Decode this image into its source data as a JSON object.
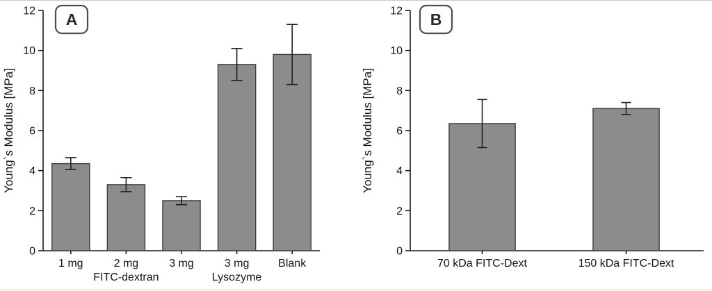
{
  "figure": {
    "background": "#ffffff"
  },
  "chart_data": [
    {
      "type": "bar",
      "panel_label": "A",
      "title": "",
      "xlabel": "",
      "ylabel": "Young`s Modulus [MPa]",
      "ylim": [
        0,
        12
      ],
      "ytick_step": 2,
      "grid": false,
      "legend": "none",
      "categories": [
        "1 mg",
        "2 mg",
        "3 mg",
        "3 mg",
        "Blank"
      ],
      "values": [
        4.35,
        3.3,
        2.5,
        9.3,
        9.8
      ],
      "errors": [
        0.3,
        0.35,
        0.2,
        0.8,
        1.5
      ],
      "group_labels": [
        {
          "text": "FITC-dextran",
          "under_index": 1
        },
        {
          "text": "Lysozyme",
          "under_index": 3
        }
      ],
      "colors": {
        "bar_fill": "#8c8c8c",
        "bar_stroke": "#3d3d3d",
        "axis": "#1a1a1a",
        "error": "#1f1f1f"
      }
    },
    {
      "type": "bar",
      "panel_label": "B",
      "title": "",
      "xlabel": "",
      "ylabel": "Young`s Modulus [MPa]",
      "ylim": [
        0,
        12
      ],
      "ytick_step": 2,
      "grid": false,
      "legend": "none",
      "categories": [
        "70 kDa FITC-Dext",
        "150 kDa FITC-Dext"
      ],
      "values": [
        6.35,
        7.1
      ],
      "errors": [
        1.2,
        0.3
      ],
      "group_labels": [],
      "colors": {
        "bar_fill": "#8c8c8c",
        "bar_stroke": "#3d3d3d",
        "axis": "#1a1a1a",
        "error": "#1f1f1f"
      }
    }
  ]
}
